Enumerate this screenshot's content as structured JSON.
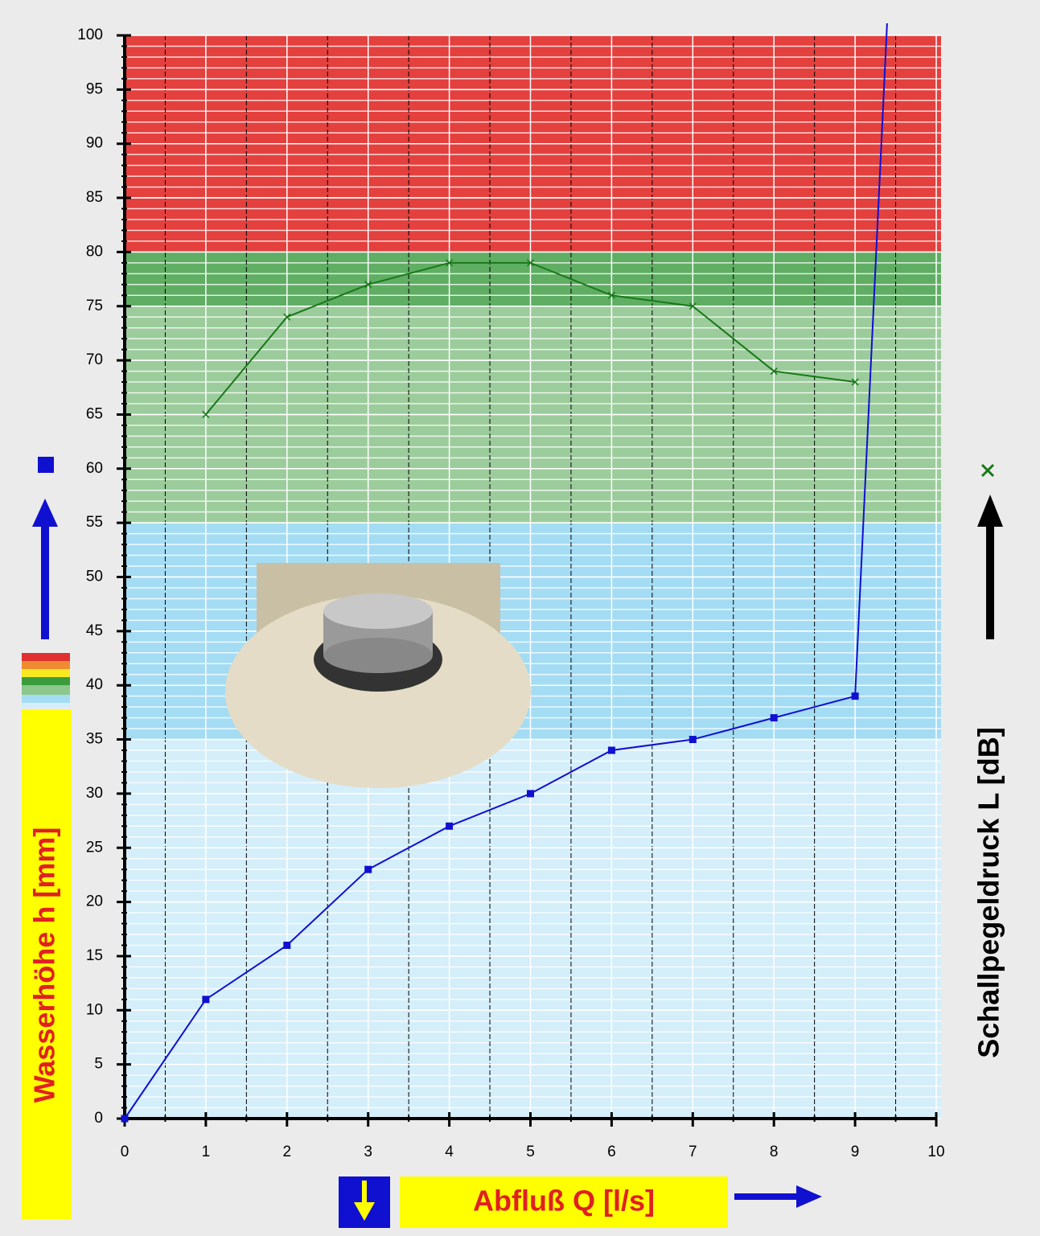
{
  "chart_data": {
    "type": "line",
    "x_label": "Abfluß Q [l/s]",
    "y_label": "Wasserhöhe h [mm]",
    "y2_label": "Schallpegeldruck L [dB]",
    "xlim": [
      0,
      10
    ],
    "ylim": [
      0,
      100
    ],
    "xticks": [
      0,
      1,
      2,
      3,
      4,
      5,
      6,
      7,
      8,
      9,
      10
    ],
    "yticks": [
      0,
      5,
      10,
      15,
      20,
      25,
      30,
      35,
      40,
      45,
      50,
      55,
      60,
      65,
      70,
      75,
      80,
      85,
      90,
      95,
      100
    ],
    "grid": true,
    "bands": [
      {
        "from": 0,
        "to": 35,
        "color": "#d4eefa"
      },
      {
        "from": 35,
        "to": 55,
        "color": "#a4dcf4"
      },
      {
        "from": 55,
        "to": 75,
        "color": "#9ccc9c"
      },
      {
        "from": 75,
        "to": 80,
        "color": "#5fae63"
      },
      {
        "from": 80,
        "to": 100,
        "color": "#e3403e"
      }
    ],
    "series": [
      {
        "color": "#1010d0",
        "marker": "square",
        "x": [
          0,
          1,
          2,
          3,
          4,
          5,
          6,
          7,
          8,
          9,
          9.4
        ],
        "values": [
          0,
          11,
          16,
          23,
          27,
          30,
          34,
          35,
          37,
          39,
          102
        ]
      },
      {
        "color": "#187818",
        "marker": "cross",
        "x": [
          1,
          2,
          3,
          4,
          5,
          6,
          7,
          8,
          9
        ],
        "values": [
          65,
          74,
          77,
          79,
          79,
          76,
          75,
          69,
          68
        ]
      }
    ]
  }
}
